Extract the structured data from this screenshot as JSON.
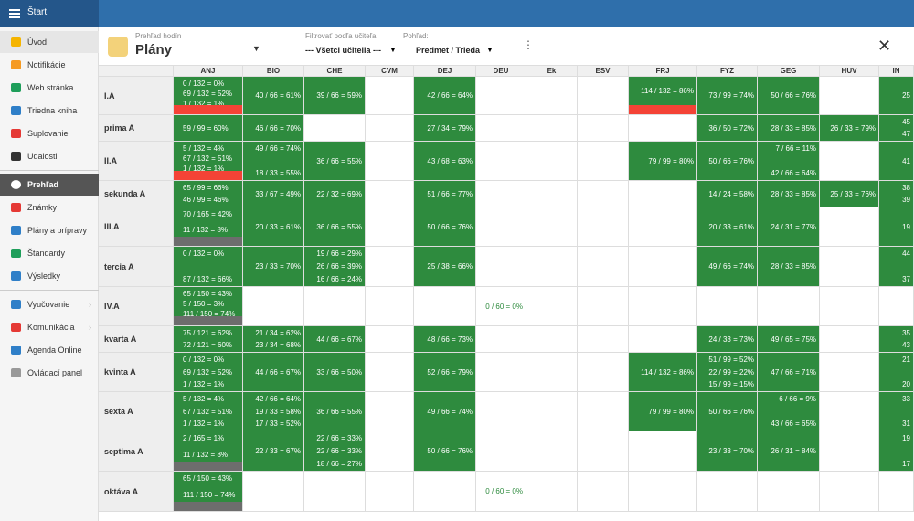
{
  "sidebar": {
    "title": "Štart",
    "items": [
      "Úvod",
      "Notifikácie",
      "Web stránka",
      "Triedna kniha",
      "Suplovanie",
      "Udalosti",
      "Prehľad",
      "Známky",
      "Plány a prípravy",
      "Štandardy",
      "Výsledky",
      "Vyučovanie",
      "Komunikácia",
      "Agenda Online",
      "Ovládací panel"
    ]
  },
  "header": {
    "subtitle": "Prehľad hodín",
    "title": "Plány",
    "filter_label": "Filtrovať podľa učiteľa:",
    "filter_value": "--- Všetci učitelia ---",
    "view_label": "Pohľad:",
    "view_value": "Predmet / Trieda"
  },
  "table": {
    "columns": [
      "ANJ",
      "BIO",
      "CHE",
      "CVM",
      "DEJ",
      "DEU",
      "Ek",
      "ESV",
      "FRJ",
      "FYZ",
      "GEG",
      "HUV",
      "IN"
    ],
    "rows": [
      {
        "label": "I.A",
        "cells": [
          [
            "0 / 132 = 0%",
            "69 / 132 = 52%",
            "1 / 132 = 1%"
          ],
          [
            "40 / 66 = 61%"
          ],
          [
            "39 / 66 = 59%"
          ],
          [],
          [
            "42 / 66 = 64%"
          ],
          [],
          [],
          [],
          [
            "114 / 132 = 86%"
          ],
          [
            "73 / 99 = 74%"
          ],
          [
            "50 / 66 = 76%"
          ],
          [],
          [
            "25"
          ]
        ],
        "bars": {
          "0": "#f44336",
          "8": "#f44336"
        }
      },
      {
        "label": "prima A",
        "cells": [
          [
            "59 / 99 = 60%"
          ],
          [
            "46 / 66 = 70%"
          ],
          [],
          [],
          [
            "27 / 34 = 79%"
          ],
          [],
          [],
          [],
          [],
          [
            "36 / 50 = 72%"
          ],
          [
            "28 / 33 = 85%"
          ],
          [
            "26 / 33 = 79%"
          ],
          [
            "45",
            "47"
          ]
        ]
      },
      {
        "label": "II.A",
        "cells": [
          [
            "5 / 132 = 4%",
            "67 / 132 = 51%",
            "1 / 132 = 1%"
          ],
          [
            "49 / 66 = 74%",
            "18 / 33 = 55%"
          ],
          [
            "36 / 66 = 55%"
          ],
          [],
          [
            "43 / 68 = 63%"
          ],
          [],
          [],
          [],
          [
            "79 / 99 = 80%"
          ],
          [
            "50 / 66 = 76%"
          ],
          [
            "7 / 66 = 11%",
            "42 / 66 = 64%"
          ],
          [],
          [
            "41"
          ]
        ],
        "bars": {
          "0": "#f44336"
        }
      },
      {
        "label": "sekunda A",
        "cells": [
          [
            "65 / 99 = 66%",
            "46 / 99 = 46%"
          ],
          [
            "33 / 67 = 49%"
          ],
          [
            "22 / 32 = 69%"
          ],
          [],
          [
            "51 / 66 = 77%"
          ],
          [],
          [],
          [],
          [],
          [
            "14 / 24 = 58%"
          ],
          [
            "28 / 33 = 85%"
          ],
          [
            "25 / 33 = 76%"
          ],
          [
            "38",
            "39"
          ]
        ]
      },
      {
        "label": "III.A",
        "cells": [
          [
            "70 / 165 = 42%",
            "11 / 132 = 8%"
          ],
          [
            "20 / 33 = 61%"
          ],
          [
            "36 / 66 = 55%"
          ],
          [],
          [
            "50 / 66 = 76%"
          ],
          [],
          [],
          [],
          [],
          [
            "20 / 33 = 61%"
          ],
          [
            "24 / 31 = 77%"
          ],
          [],
          [
            "19"
          ]
        ],
        "bars": {
          "0": "#6d6d6d"
        }
      },
      {
        "label": "tercia A",
        "cells": [
          [
            "0 / 132 = 0%",
            "87 / 132 = 66%"
          ],
          [
            "23 / 33 = 70%"
          ],
          [
            "19 / 66 = 29%",
            "26 / 66 = 39%",
            "16 / 66 = 24%"
          ],
          [],
          [
            "25 / 38 = 66%"
          ],
          [],
          [],
          [],
          [],
          [
            "49 / 66 = 74%"
          ],
          [
            "28 / 33 = 85%"
          ],
          [],
          [
            "44",
            "37"
          ]
        ]
      },
      {
        "label": "IV.A",
        "cells": [
          [
            "65 / 150 = 43%",
            "5 / 150 = 3%",
            "111 / 150 = 74%"
          ],
          [],
          [],
          [],
          [],
          [
            "0 / 60 = 0%"
          ],
          [],
          [],
          [],
          [],
          [],
          [],
          []
        ],
        "bars": {
          "0": "#6d6d6d"
        },
        "fills": {
          "5": "#ffffff"
        }
      },
      {
        "label": "kvarta A",
        "cells": [
          [
            "75 / 121 = 62%",
            "72 / 121 = 60%"
          ],
          [
            "21 / 34 = 62%",
            "23 / 34 = 68%"
          ],
          [
            "44 / 66 = 67%"
          ],
          [],
          [
            "48 / 66 = 73%"
          ],
          [],
          [],
          [],
          [],
          [
            "24 / 33 = 73%"
          ],
          [
            "49 / 65 = 75%"
          ],
          [],
          [
            "35",
            "43"
          ]
        ]
      },
      {
        "label": "kvinta A",
        "cells": [
          [
            "0 / 132 = 0%",
            "69 / 132 = 52%",
            "1 / 132 = 1%"
          ],
          [
            "44 / 66 = 67%"
          ],
          [
            "33 / 66 = 50%"
          ],
          [],
          [
            "52 / 66 = 79%"
          ],
          [],
          [],
          [],
          [
            "114 / 132 = 86%"
          ],
          [
            "51 / 99 = 52%",
            "22 / 99 = 22%",
            "15 / 99 = 15%"
          ],
          [
            "47 / 66 = 71%"
          ],
          [],
          [
            "21",
            "20"
          ]
        ]
      },
      {
        "label": "sexta A",
        "cells": [
          [
            "5 / 132 = 4%",
            "67 / 132 = 51%",
            "1 / 132 = 1%"
          ],
          [
            "42 / 66 = 64%",
            "19 / 33 = 58%",
            "17 / 33 = 52%"
          ],
          [
            "36 / 66 = 55%"
          ],
          [],
          [
            "49 / 66 = 74%"
          ],
          [],
          [],
          [],
          [
            "79 / 99 = 80%"
          ],
          [
            "50 / 66 = 76%"
          ],
          [
            "6 / 66 = 9%",
            "43 / 66 = 65%"
          ],
          [],
          [
            "33",
            "31"
          ]
        ]
      },
      {
        "label": "septima A",
        "cells": [
          [
            "2 / 165 = 1%",
            "11 / 132 = 8%"
          ],
          [
            "22 / 33 = 67%"
          ],
          [
            "22 / 66 = 33%",
            "22 / 66 = 33%",
            "18 / 66 = 27%"
          ],
          [],
          [
            "50 / 66 = 76%"
          ],
          [],
          [],
          [],
          [],
          [
            "23 / 33 = 70%"
          ],
          [
            "26 / 31 = 84%"
          ],
          [],
          [
            "19",
            "17"
          ]
        ],
        "bars": {
          "0": "#6d6d6d"
        }
      },
      {
        "label": "oktáva A",
        "cells": [
          [
            "65 / 150 = 43%",
            "111 / 150 = 74%"
          ],
          [],
          [],
          [],
          [],
          [
            "0 / 60 = 0%"
          ],
          [],
          [],
          [],
          [],
          [],
          [],
          []
        ],
        "bars": {
          "0": "#6d6d6d"
        },
        "fills": {
          "5": "#ffffff"
        }
      }
    ]
  }
}
